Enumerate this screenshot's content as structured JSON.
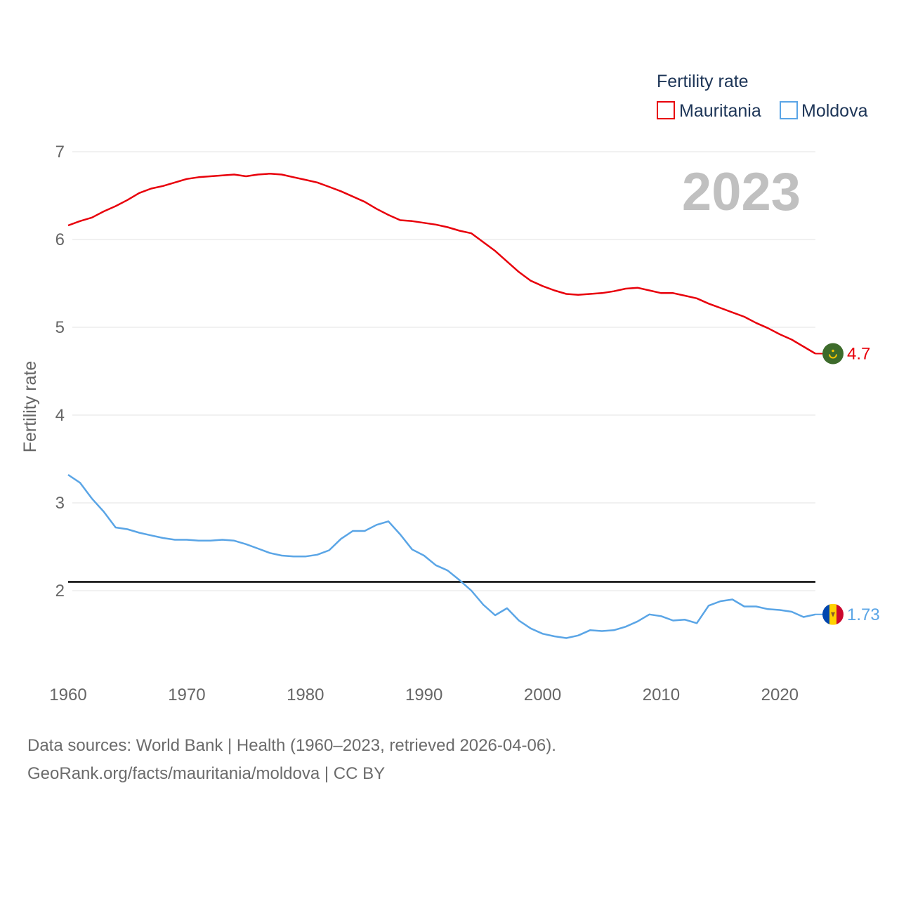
{
  "chart_data": {
    "type": "line",
    "title": "",
    "ylabel": "Fertility rate",
    "xlabel": "",
    "xlim": [
      1960,
      2023
    ],
    "ylim": [
      1.3,
      7
    ],
    "yticks": [
      2,
      3,
      4,
      5,
      6,
      7
    ],
    "xticks": [
      1960,
      1970,
      1980,
      1990,
      2000,
      2010,
      2020
    ],
    "year_label": "2023",
    "legend": {
      "title": "Fertility rate",
      "position": "top-right"
    },
    "reference_line": {
      "value": 2.1,
      "color": "#000000"
    },
    "series": [
      {
        "name": "Mauritania",
        "color": "#e8000b",
        "end_label": "4.7",
        "x": [
          1960,
          1961,
          1962,
          1963,
          1964,
          1965,
          1966,
          1967,
          1968,
          1969,
          1970,
          1971,
          1972,
          1973,
          1974,
          1975,
          1976,
          1977,
          1978,
          1979,
          1980,
          1981,
          1982,
          1983,
          1984,
          1985,
          1986,
          1987,
          1988,
          1989,
          1990,
          1991,
          1992,
          1993,
          1994,
          1995,
          1996,
          1997,
          1998,
          1999,
          2000,
          2001,
          2002,
          2003,
          2004,
          2005,
          2006,
          2007,
          2008,
          2009,
          2010,
          2011,
          2012,
          2013,
          2014,
          2015,
          2016,
          2017,
          2018,
          2019,
          2020,
          2021,
          2022,
          2023
        ],
        "values": [
          6.16,
          6.21,
          6.25,
          6.32,
          6.38,
          6.45,
          6.53,
          6.58,
          6.61,
          6.65,
          6.69,
          6.71,
          6.72,
          6.73,
          6.74,
          6.72,
          6.74,
          6.75,
          6.74,
          6.71,
          6.68,
          6.65,
          6.6,
          6.55,
          6.49,
          6.43,
          6.35,
          6.28,
          6.22,
          6.21,
          6.19,
          6.17,
          6.14,
          6.1,
          6.07,
          5.97,
          5.87,
          5.75,
          5.63,
          5.53,
          5.47,
          5.42,
          5.38,
          5.37,
          5.38,
          5.39,
          5.41,
          5.44,
          5.45,
          5.42,
          5.39,
          5.39,
          5.36,
          5.33,
          5.27,
          5.22,
          5.17,
          5.12,
          5.05,
          4.99,
          4.92,
          4.86,
          4.78,
          4.7
        ]
      },
      {
        "name": "Moldova",
        "color": "#5aa5e6",
        "end_label": "1.73",
        "x": [
          1960,
          1961,
          1962,
          1963,
          1964,
          1965,
          1966,
          1967,
          1968,
          1969,
          1970,
          1971,
          1972,
          1973,
          1974,
          1975,
          1976,
          1977,
          1978,
          1979,
          1980,
          1981,
          1982,
          1983,
          1984,
          1985,
          1986,
          1987,
          1988,
          1989,
          1990,
          1991,
          1992,
          1993,
          1994,
          1995,
          1996,
          1997,
          1998,
          1999,
          2000,
          2001,
          2002,
          2003,
          2004,
          2005,
          2006,
          2007,
          2008,
          2009,
          2010,
          2011,
          2012,
          2013,
          2014,
          2015,
          2016,
          2017,
          2018,
          2019,
          2020,
          2021,
          2022,
          2023
        ],
        "values": [
          3.32,
          3.23,
          3.05,
          2.9,
          2.72,
          2.7,
          2.66,
          2.63,
          2.6,
          2.58,
          2.58,
          2.57,
          2.57,
          2.58,
          2.57,
          2.53,
          2.48,
          2.43,
          2.4,
          2.39,
          2.39,
          2.41,
          2.46,
          2.59,
          2.68,
          2.68,
          2.75,
          2.79,
          2.64,
          2.47,
          2.4,
          2.29,
          2.23,
          2.12,
          2.0,
          1.84,
          1.72,
          1.8,
          1.66,
          1.57,
          1.51,
          1.48,
          1.46,
          1.49,
          1.55,
          1.54,
          1.55,
          1.59,
          1.65,
          1.73,
          1.71,
          1.66,
          1.67,
          1.63,
          1.83,
          1.88,
          1.9,
          1.82,
          1.82,
          1.79,
          1.78,
          1.76,
          1.7,
          1.73
        ]
      }
    ]
  },
  "footer": {
    "sources_line": "Data sources: World Bank | Health (1960–2023, retrieved 2026-04-06).",
    "attribution_line": "GeoRank.org/facts/mauritania/moldova | CC BY"
  },
  "flags": {
    "Mauritania": {
      "icon": "mauritania-flag-icon",
      "colors": [
        "#3d6b2b",
        "#f5c400",
        "#d01c1f"
      ]
    },
    "Moldova": {
      "icon": "moldova-flag-icon",
      "colors": [
        "#0046ae",
        "#ffd200",
        "#cc092f"
      ]
    }
  }
}
